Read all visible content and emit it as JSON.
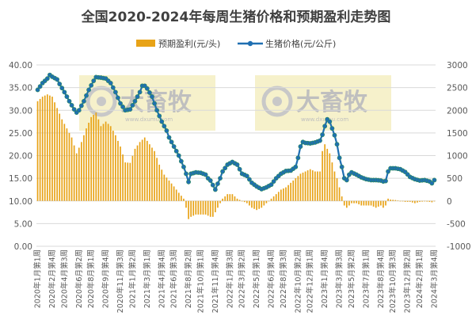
{
  "chart_data": {
    "type": "bar+line",
    "title": "全国2020-2024年每周生猪价格和预期盈利走势图",
    "legend": {
      "position": "top",
      "bar_label": "预期盈利(元/头)",
      "line_label": "生猪价格(元/公斤)"
    },
    "colors": {
      "bar": "#E8A317",
      "line": "#1F6FB2",
      "marker_fill": "#1F6FB2",
      "marker_edge": "#2E8B57",
      "grid": "#D9D9D9",
      "watermark_bg": "#F5EFC2"
    },
    "watermark": {
      "text": "大畜牧",
      "sub": "www.dxumu.com"
    },
    "y_left": {
      "min": 0,
      "max": 40,
      "step": 5,
      "labels": [
        "0.00",
        "5.00",
        "10.00",
        "15.00",
        "20.00",
        "25.00",
        "30.00",
        "35.00",
        "40.00"
      ]
    },
    "y_right": {
      "min": -1000,
      "max": 3000,
      "step": 500,
      "labels": [
        "-1000",
        "-500",
        "0",
        "500",
        "1000",
        "1500",
        "2000",
        "2500",
        "3000"
      ]
    },
    "x_ticks": [
      "2020年1月第1周",
      "2020年2月第4周",
      "2020年4月第3周",
      "2020年6月第2周",
      "2020年8月第1周",
      "2020年9月第4周",
      "2020年11月第3周",
      "2021年1月第2周",
      "2021年3月第1周",
      "2021年4月第4周",
      "2021年6月第3周",
      "2021年8月第2周",
      "2021年10月第1周",
      "2021年11月第4周",
      "2022年1月第3周",
      "2022年3月第2周",
      "2022年5月第1周",
      "2022年6月第4周",
      "2022年8月第3周",
      "2022年10月第2周",
      "2022年12月第1周",
      "2023年1月第4周",
      "2023年3月第3周",
      "2023年5月第2周",
      "2023年7月第1周",
      "2023年8月第4周",
      "2023年10月第3周",
      "2023年12月第2周",
      "2024年2月第1周",
      "2024年3月第4周"
    ],
    "price_anchors": [
      [
        0,
        34.5
      ],
      [
        2,
        36.0
      ],
      [
        4,
        37.0
      ],
      [
        5,
        37.8
      ],
      [
        6,
        37.4
      ],
      [
        8,
        36.8
      ],
      [
        9,
        35.8
      ],
      [
        11,
        34.0
      ],
      [
        13,
        32.0
      ],
      [
        15,
        30.2
      ],
      [
        16,
        29.5
      ],
      [
        17,
        30.0
      ],
      [
        19,
        32.0
      ],
      [
        21,
        34.5
      ],
      [
        23,
        36.5
      ],
      [
        24,
        37.3
      ],
      [
        26,
        37.2
      ],
      [
        28,
        37.0
      ],
      [
        30,
        36.0
      ],
      [
        32,
        34.0
      ],
      [
        34,
        31.5
      ],
      [
        36,
        30.0
      ],
      [
        38,
        30.2
      ],
      [
        40,
        32.0
      ],
      [
        42,
        34.0
      ],
      [
        43,
        35.4
      ],
      [
        44,
        35.4
      ],
      [
        45,
        34.8
      ],
      [
        47,
        33.0
      ],
      [
        49,
        30.0
      ],
      [
        51,
        27.5
      ],
      [
        53,
        25.5
      ],
      [
        54,
        24.0
      ],
      [
        56,
        22.0
      ],
      [
        58,
        20.0
      ],
      [
        60,
        17.5
      ],
      [
        61,
        16.0
      ],
      [
        62,
        14.2
      ],
      [
        63,
        16.0
      ],
      [
        65,
        16.3
      ],
      [
        67,
        16.2
      ],
      [
        69,
        15.8
      ],
      [
        70,
        15.0
      ],
      [
        71,
        14.5
      ],
      [
        72,
        13.5
      ],
      [
        73,
        12.5
      ],
      [
        74,
        13.8
      ],
      [
        75,
        15.0
      ],
      [
        76,
        16.5
      ],
      [
        78,
        18.0
      ],
      [
        80,
        18.6
      ],
      [
        82,
        18.0
      ],
      [
        84,
        16.0
      ],
      [
        86,
        15.5
      ],
      [
        88,
        14.0
      ],
      [
        90,
        13.2
      ],
      [
        92,
        12.6
      ],
      [
        94,
        13.0
      ],
      [
        96,
        13.6
      ],
      [
        98,
        15.0
      ],
      [
        100,
        16.0
      ],
      [
        102,
        16.6
      ],
      [
        104,
        16.7
      ],
      [
        106,
        17.5
      ],
      [
        107,
        19.5
      ],
      [
        108,
        22.0
      ],
      [
        109,
        23.0
      ],
      [
        110,
        22.8
      ],
      [
        112,
        22.7
      ],
      [
        114,
        22.9
      ],
      [
        116,
        23.3
      ],
      [
        117,
        24.6
      ],
      [
        118,
        26.5
      ],
      [
        119,
        28.0
      ],
      [
        120,
        27.5
      ],
      [
        121,
        26.0
      ],
      [
        122,
        24.5
      ],
      [
        123,
        22.5
      ],
      [
        124,
        19.5
      ],
      [
        125,
        17.5
      ],
      [
        126,
        15.0
      ],
      [
        127,
        14.6
      ],
      [
        128,
        15.8
      ],
      [
        129,
        16.3
      ],
      [
        131,
        15.8
      ],
      [
        133,
        15.2
      ],
      [
        135,
        14.8
      ],
      [
        137,
        14.6
      ],
      [
        139,
        14.6
      ],
      [
        141,
        14.5
      ],
      [
        142,
        14.3
      ],
      [
        143,
        14.4
      ],
      [
        144,
        16.5
      ],
      [
        145,
        17.2
      ],
      [
        147,
        17.2
      ],
      [
        149,
        17.0
      ],
      [
        151,
        16.4
      ],
      [
        153,
        15.3
      ],
      [
        155,
        14.8
      ],
      [
        157,
        14.5
      ],
      [
        159,
        14.6
      ],
      [
        161,
        14.3
      ],
      [
        162,
        13.9
      ],
      [
        163,
        14.6
      ]
    ],
    "profit_anchors": [
      [
        0,
        2200
      ],
      [
        2,
        2300
      ],
      [
        4,
        2350
      ],
      [
        6,
        2300
      ],
      [
        8,
        2050
      ],
      [
        10,
        1800
      ],
      [
        12,
        1600
      ],
      [
        14,
        1400
      ],
      [
        16,
        1050
      ],
      [
        18,
        1300
      ],
      [
        20,
        1600
      ],
      [
        22,
        1850
      ],
      [
        24,
        1950
      ],
      [
        26,
        1650
      ],
      [
        28,
        1750
      ],
      [
        30,
        1650
      ],
      [
        32,
        1450
      ],
      [
        34,
        1200
      ],
      [
        36,
        850
      ],
      [
        38,
        840
      ],
      [
        40,
        1150
      ],
      [
        42,
        1300
      ],
      [
        44,
        1400
      ],
      [
        46,
        1250
      ],
      [
        48,
        1100
      ],
      [
        50,
        800
      ],
      [
        52,
        580
      ],
      [
        54,
        450
      ],
      [
        56,
        320
      ],
      [
        58,
        180
      ],
      [
        60,
        50
      ],
      [
        61,
        -150
      ],
      [
        62,
        -400
      ],
      [
        63,
        -350
      ],
      [
        65,
        -300
      ],
      [
        67,
        -300
      ],
      [
        69,
        -300
      ],
      [
        71,
        -350
      ],
      [
        72,
        -350
      ],
      [
        74,
        -150
      ],
      [
        76,
        50
      ],
      [
        78,
        150
      ],
      [
        80,
        150
      ],
      [
        82,
        50
      ],
      [
        84,
        0
      ],
      [
        86,
        -50
      ],
      [
        88,
        -150
      ],
      [
        90,
        -200
      ],
      [
        92,
        -150
      ],
      [
        94,
        -50
      ],
      [
        96,
        50
      ],
      [
        98,
        150
      ],
      [
        100,
        250
      ],
      [
        102,
        300
      ],
      [
        104,
        400
      ],
      [
        106,
        500
      ],
      [
        108,
        600
      ],
      [
        110,
        650
      ],
      [
        112,
        700
      ],
      [
        114,
        650
      ],
      [
        116,
        650
      ],
      [
        117,
        1100
      ],
      [
        118,
        1250
      ],
      [
        119,
        1150
      ],
      [
        120,
        1050
      ],
      [
        121,
        850
      ],
      [
        122,
        650
      ],
      [
        123,
        500
      ],
      [
        124,
        300
      ],
      [
        125,
        100
      ],
      [
        126,
        -100
      ],
      [
        127,
        -150
      ],
      [
        129,
        -50
      ],
      [
        131,
        -50
      ],
      [
        133,
        -100
      ],
      [
        135,
        -100
      ],
      [
        137,
        -100
      ],
      [
        139,
        -150
      ],
      [
        141,
        -100
      ],
      [
        142,
        -150
      ],
      [
        143,
        -100
      ],
      [
        144,
        50
      ],
      [
        145,
        30
      ],
      [
        147,
        20
      ],
      [
        149,
        0
      ],
      [
        151,
        -20
      ],
      [
        153,
        -20
      ],
      [
        155,
        -50
      ],
      [
        157,
        -20
      ],
      [
        159,
        -10
      ],
      [
        161,
        -20
      ],
      [
        162,
        -30
      ],
      [
        163,
        0
      ]
    ],
    "num_weeks": 164
  }
}
